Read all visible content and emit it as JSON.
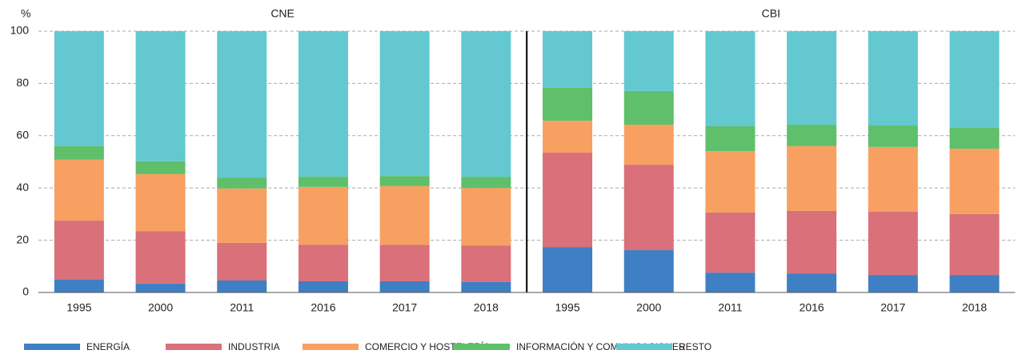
{
  "chart_data": {
    "type": "stacked_bar",
    "y_label": "%",
    "groups": [
      {
        "label": "CNE",
        "categories": [
          "1995",
          "2000",
          "2011",
          "2016",
          "2017",
          "2018"
        ]
      },
      {
        "label": "CBI",
        "categories": [
          "1995",
          "2000",
          "2011",
          "2016",
          "2017",
          "2018"
        ]
      }
    ],
    "series": [
      {
        "name": "ENERGÍA",
        "color": "#3f7fc4",
        "values": [
          5,
          3.4,
          4.6,
          4.3,
          4.3,
          4,
          17.4,
          16.2,
          7.6,
          7.3,
          6.7,
          6.7
        ]
      },
      {
        "name": "INDUSTRIA",
        "color": "#d9707a",
        "values": [
          22.5,
          20.1,
          14.4,
          14,
          14,
          14,
          36.1,
          32.7,
          23,
          23.9,
          24.2,
          23.3
        ]
      },
      {
        "name": "COMERCIO Y HOSTELERÍA",
        "color": "#f7a062",
        "values": [
          23.3,
          21.8,
          20.8,
          22.1,
          22.4,
          22,
          12.2,
          15.3,
          23.5,
          24.8,
          24.8,
          25
        ]
      },
      {
        "name": "INFORMACIÓN Y COMUNICACIONES",
        "color": "#5fbf6a",
        "values": [
          5.2,
          4.9,
          4.2,
          3.9,
          3.9,
          4.3,
          12.6,
          12.9,
          9.5,
          8.2,
          8.2,
          8
        ]
      },
      {
        "name": "RESTO",
        "color": "#63c8d0",
        "values": [
          44,
          49.8,
          56,
          55.7,
          55.4,
          55.7,
          21.7,
          22.9,
          36.4,
          35.8,
          36.1,
          37
        ]
      }
    ],
    "ylim": [
      0,
      100
    ],
    "yticks": [
      0,
      20,
      40,
      60,
      80,
      100
    ],
    "grid": true
  }
}
